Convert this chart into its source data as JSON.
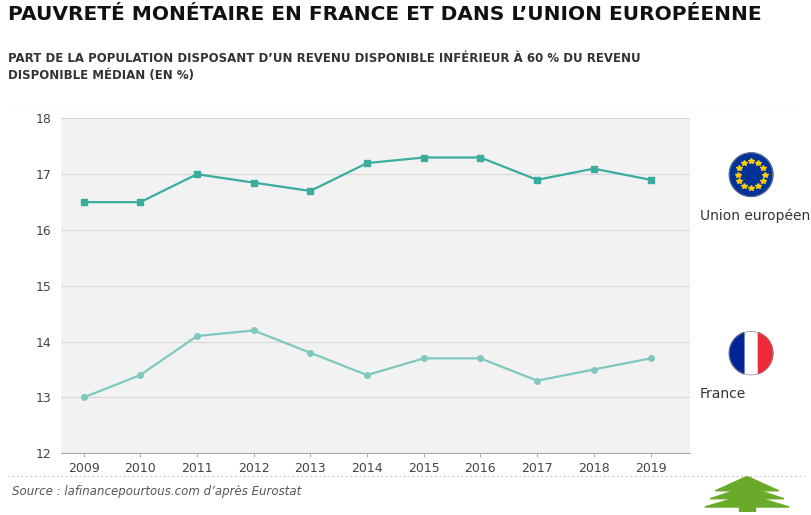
{
  "title": "PAUVRETÉ MONÉTAIRE EN FRANCE ET DANS L’UNION EUROPÉENNE",
  "subtitle": "PART DE LA POPULATION DISPOSANT D’UN REVENU DISPONIBLE INFÉRIEUR À 60 % DU REVENU\nDISPONIBLE MÉDIAN (EN %)",
  "source": "Source : lafinancepourtous.com d’après Eurostat",
  "years": [
    2009,
    2010,
    2011,
    2012,
    2013,
    2014,
    2015,
    2016,
    2017,
    2018,
    2019
  ],
  "eu_values": [
    16.5,
    16.5,
    17.0,
    16.85,
    16.7,
    17.2,
    17.3,
    17.3,
    16.9,
    17.1,
    16.9
  ],
  "france_values": [
    13.0,
    13.4,
    14.1,
    14.2,
    13.8,
    13.4,
    13.7,
    13.7,
    13.3,
    13.5,
    13.7
  ],
  "line_color_eu": "#3aada0",
  "line_color_france": "#7ec8c0",
  "marker_color_eu": "#3aada0",
  "marker_color_france": "#7ec8c0",
  "ylim": [
    12,
    18
  ],
  "yticks": [
    12,
    13,
    14,
    15,
    16,
    17,
    18
  ],
  "background_color": "#ffffff",
  "plot_bg_color": "#f2f2f2",
  "grid_color": "#d8d8d8",
  "label_eu": "Union européenne",
  "label_france": "France",
  "title_fontsize": 14.5,
  "subtitle_fontsize": 8.5,
  "source_fontsize": 8.5,
  "tick_fontsize": 9,
  "label_fontsize": 10,
  "eu_flag_blue": "#003399",
  "eu_flag_yellow": "#FFCC00",
  "fr_flag_blue": "#002395",
  "fr_flag_white": "#FFFFFF",
  "fr_flag_red": "#ED2939",
  "tree_color": "#6aaa2a",
  "separator_color": "#bbbbbb",
  "dotted_color": "#aaaaaa"
}
